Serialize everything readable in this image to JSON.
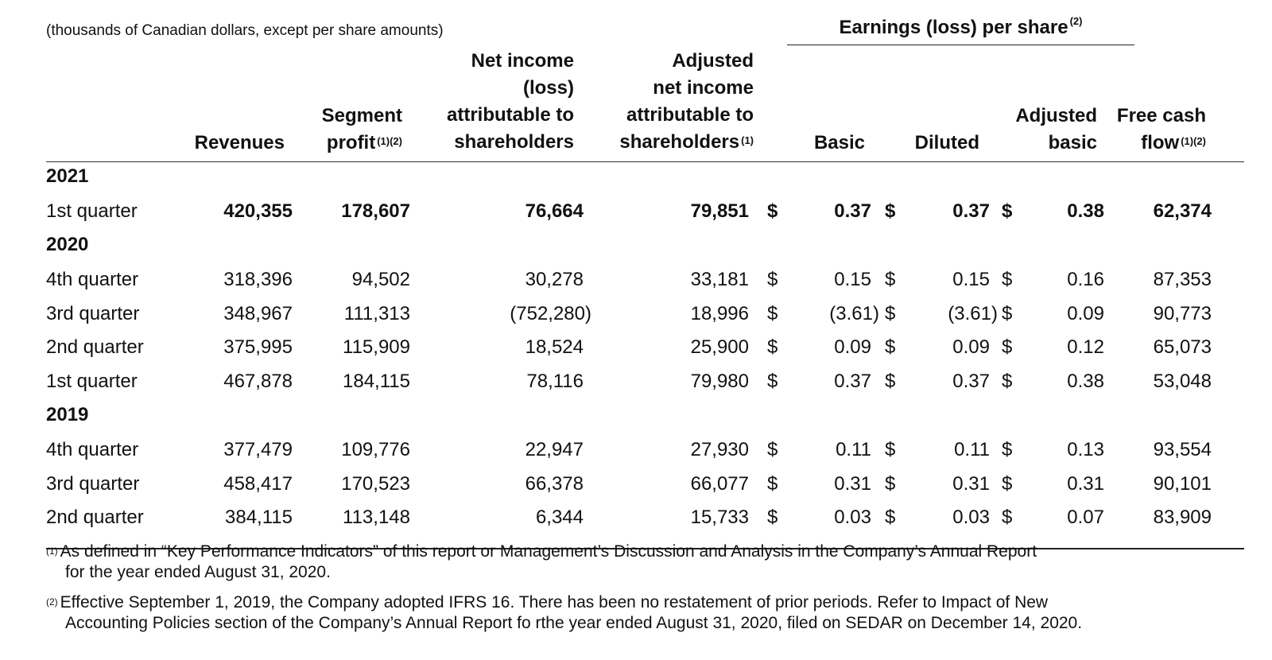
{
  "units_note": "(thousands of Canadian dollars, except per share amounts)",
  "eps_group": {
    "label": "Earnings (loss) per share",
    "note": "(2)"
  },
  "headers": {
    "revenues": "Revenues",
    "segment_profit": {
      "line1": "Segment",
      "line2": "profit",
      "note": "(1)(2)"
    },
    "net_income": {
      "line1": "Net income",
      "line2": "(loss)",
      "line3": "attributable to",
      "line4": "shareholders"
    },
    "adjusted_net_income": {
      "line1": "Adjusted",
      "line2": "net income",
      "line3": "attributable to",
      "line4": "shareholders",
      "note": "(1)"
    },
    "basic": "Basic",
    "diluted": "Diluted",
    "adjusted_basic": {
      "line1": "Adjusted",
      "line2": "basic"
    },
    "free_cash_flow": {
      "line1": "Free cash",
      "line2": "flow",
      "note": "(1)(2)"
    }
  },
  "currency_symbol": "$",
  "years": [
    {
      "year": "2021",
      "rows": [
        {
          "period": "1st quarter",
          "revenues": "420,355",
          "segment_profit": "178,607",
          "net_income": "76,664",
          "adjusted_net_income": "79,851",
          "basic": "0.37",
          "diluted": "0.37",
          "adjusted_basic": "0.38",
          "free_cash_flow": "62,374"
        }
      ]
    },
    {
      "year": "2020",
      "rows": [
        {
          "period": "4th quarter",
          "revenues": "318,396",
          "segment_profit": "94,502",
          "net_income": "30,278",
          "adjusted_net_income": "33,181",
          "basic": "0.15",
          "diluted": "0.15",
          "adjusted_basic": "0.16",
          "free_cash_flow": "87,353"
        },
        {
          "period": "3rd quarter",
          "revenues": "348,967",
          "segment_profit": "111,313",
          "net_income": "(752,280)",
          "adjusted_net_income": "18,996",
          "basic": "(3.61)",
          "diluted": "(3.61)",
          "adjusted_basic": "0.09",
          "free_cash_flow": "90,773"
        },
        {
          "period": "2nd quarter",
          "revenues": "375,995",
          "segment_profit": "115,909",
          "net_income": "18,524",
          "adjusted_net_income": "25,900",
          "basic": "0.09",
          "diluted": "0.09",
          "adjusted_basic": "0.12",
          "free_cash_flow": "65,073"
        },
        {
          "period": "1st quarter",
          "revenues": "467,878",
          "segment_profit": "184,115",
          "net_income": "78,116",
          "adjusted_net_income": "79,980",
          "basic": "0.37",
          "diluted": "0.37",
          "adjusted_basic": "0.38",
          "free_cash_flow": "53,048"
        }
      ]
    },
    {
      "year": "2019",
      "rows": [
        {
          "period": "4th quarter",
          "revenues": "377,479",
          "segment_profit": "109,776",
          "net_income": "22,947",
          "adjusted_net_income": "27,930",
          "basic": "0.11",
          "diluted": "0.11",
          "adjusted_basic": "0.13",
          "free_cash_flow": "93,554"
        },
        {
          "period": "3rd quarter",
          "revenues": "458,417",
          "segment_profit": "170,523",
          "net_income": "66,378",
          "adjusted_net_income": "66,077",
          "basic": "0.31",
          "diluted": "0.31",
          "adjusted_basic": "0.31",
          "free_cash_flow": "90,101"
        },
        {
          "period": "2nd quarter",
          "revenues": "384,115",
          "segment_profit": "113,148",
          "net_income": "6,344",
          "adjusted_net_income": "15,733",
          "basic": "0.03",
          "diluted": "0.03",
          "adjusted_basic": "0.07",
          "free_cash_flow": "83,909"
        }
      ]
    }
  ],
  "footnotes": [
    {
      "mark": "(1)",
      "line1": "As defined in “Key Performance Indicators” of  this report or Management’s Discussion and Analysis in the Company’s Annual Report",
      "line2": "for the year ended August 31, 2020."
    },
    {
      "mark": "(2)",
      "line1": "Effective September 1, 2019, the Company adopted IFRS 16.  There has been no restatement of prior periods.  Refer to Impact of New",
      "line2": "Accounting Policies section of the Company’s Annual Report fo rthe year ended August 31, 2020, filed on SEDAR on December 14, 2020."
    }
  ]
}
